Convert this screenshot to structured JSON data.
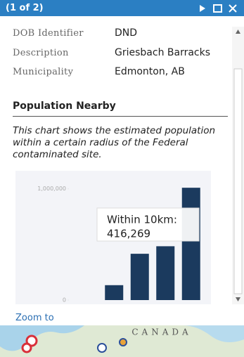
{
  "header": {
    "title": "(1 of 2)"
  },
  "fields": [
    {
      "label": "DOB Identifier",
      "value": "DND"
    },
    {
      "label": "Description",
      "value": "Griesbach Barracks"
    },
    {
      "label": "Municipality",
      "value": "Edmonton, AB"
    }
  ],
  "section_title": "Population Nearby",
  "description": "This chart shows the estimated population within a certain radius of the Federal contaminated site.",
  "chart_data": {
    "type": "bar",
    "categories": [
      null,
      "Within 10km:",
      null,
      null
    ],
    "values": [
      134000,
      416269,
      484000,
      1010000
    ],
    "value_labels": [
      null,
      "416,269",
      null,
      null
    ],
    "color": "#1b3a5e",
    "ylim": [
      0,
      1150000
    ],
    "yticks": [
      0,
      {
        "value": 1000000,
        "label": "1,000,000"
      }
    ]
  },
  "link": "Zoom to",
  "map_label": "CANADA"
}
